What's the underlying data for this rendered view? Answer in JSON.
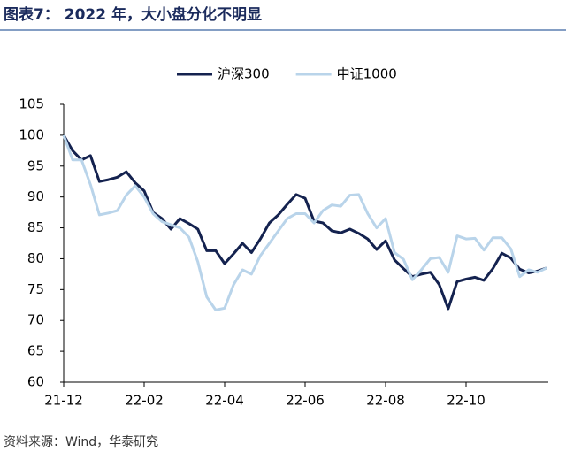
{
  "chart_data": {
    "type": "line",
    "title": "图表7： 2022 年，大小盘分化不明显",
    "source": "资料来源：Wind，华泰研究",
    "categories": [
      "21-12",
      null,
      null,
      null,
      null,
      null,
      null,
      null,
      null,
      "22-02",
      null,
      null,
      null,
      null,
      null,
      null,
      null,
      null,
      "22-04",
      null,
      null,
      null,
      null,
      null,
      null,
      null,
      null,
      "22-06",
      null,
      null,
      null,
      null,
      null,
      null,
      null,
      null,
      "22-08",
      null,
      null,
      null,
      null,
      null,
      null,
      null,
      null,
      "22-10",
      null,
      null,
      null,
      null,
      null,
      null,
      null,
      null,
      null
    ],
    "series": [
      {
        "name": "沪深300",
        "color": "#14224f",
        "values": [
          100,
          97.5,
          96,
          96.7,
          92.5,
          92.8,
          93.2,
          94.1,
          92.3,
          91,
          87.5,
          86.5,
          84.8,
          86.5,
          85.7,
          84.8,
          81.3,
          81.3,
          79.2,
          80.8,
          82.5,
          81,
          83.2,
          85.8,
          87.1,
          88.8,
          90.4,
          89.8,
          86.1,
          85.8,
          84.5,
          84.2,
          84.8,
          84.1,
          83.2,
          81.5,
          82.9,
          79.8,
          78.4,
          77.1,
          77.5,
          77.8,
          75.8,
          71.9,
          76.3,
          76.7,
          77,
          76.5,
          78.4,
          80.9,
          80.1,
          78.3,
          77.7,
          78,
          78.5
        ]
      },
      {
        "name": "中证1000",
        "color": "#b9d4ea",
        "values": [
          100,
          96,
          96,
          92,
          87.1,
          87.4,
          87.8,
          90.3,
          91.8,
          90,
          87.3,
          86,
          85.5,
          85,
          83.5,
          79.5,
          73.8,
          71.7,
          72,
          75.8,
          78.2,
          77.5,
          80.5,
          82.5,
          84.5,
          86.5,
          87.3,
          87.3,
          85.8,
          87.8,
          88.7,
          88.5,
          90.3,
          90.4,
          87.3,
          85,
          86.5,
          81,
          79.9,
          76.6,
          78.2,
          80,
          80.2,
          77.8,
          83.7,
          83.2,
          83.3,
          81.4,
          83.4,
          83.4,
          81.6,
          77.1,
          78.2,
          77.8,
          78.5
        ]
      }
    ],
    "ylim": [
      60,
      105
    ],
    "yticks": [
      60,
      65,
      70,
      75,
      80,
      85,
      90,
      95,
      100,
      105
    ],
    "grid": false
  }
}
